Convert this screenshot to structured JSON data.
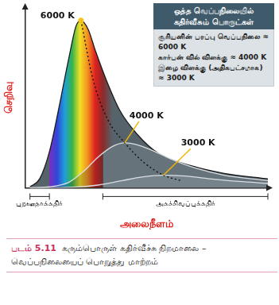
{
  "chart_data": {
    "type": "line",
    "x_label": "அலைநீளம்",
    "y_label": "செறிவு",
    "xlim": [
      0,
      100
    ],
    "ylim": [
      0,
      100
    ],
    "tick_labels": false,
    "grid": false,
    "series": [
      {
        "name": "6000 K",
        "color": "#56636b",
        "x": [
          2,
          6,
          10,
          14,
          18,
          21,
          23,
          26,
          29,
          34,
          39,
          46,
          55,
          69,
          82,
          100
        ],
        "values": [
          0.5,
          5,
          20,
          45,
          72,
          90,
          93,
          88,
          76,
          58,
          43,
          30,
          19,
          12,
          8,
          5
        ]
      },
      {
        "name": "4000 K",
        "color": "#67737b",
        "x": [
          2,
          10,
          18,
          24,
          30,
          36,
          41,
          46,
          52,
          60,
          70,
          82,
          100
        ],
        "values": [
          0,
          0.5,
          3,
          9,
          17,
          23,
          25,
          24,
          21,
          16,
          11,
          7,
          4
        ]
      },
      {
        "name": "3000 K",
        "color": "#77838a",
        "x": [
          2,
          20,
          30,
          40,
          48,
          57,
          66,
          76,
          88,
          100
        ],
        "values": [
          0,
          0.3,
          1.5,
          4,
          6,
          7,
          6.5,
          5,
          3.5,
          2.5
        ]
      },
      {
        "line_style": "dotted",
        "color": "#111111",
        "x": [
          23,
          28,
          34,
          41,
          49,
          57,
          64
        ],
        "values": [
          93,
          60,
          38,
          25,
          14,
          7,
          4
        ]
      }
    ],
    "spectrum_band": [
      10,
      32
    ],
    "regions": [
      {
        "label": "புறஊதாக்கதிர்",
        "range": [
          2,
          10
        ]
      },
      {
        "label": "அகச்சிவப்புக்கதிர்",
        "range": [
          32,
          100
        ]
      }
    ],
    "info_box": {
      "title": [
        "ஒத்த வெப்பநிலையில்",
        "கதிர்வீசும் பொருட்கள்"
      ],
      "items": [
        "சூரியனின் பரப்பு வெப்பநிலை ≈ 6000 K",
        "கார்பன் வில் விளக்கு ≈ 4000 K",
        "இழை விளக்கு (அதிகபட்சமாக) ≈ 3000 K"
      ]
    },
    "caption": {
      "number": "படம் 5.11",
      "text": "கரும்பொருள் கதிர்வீச்சு நிறமாலை – வெப்பநிலையைப் பொறுத்து மாற்றம்"
    }
  }
}
